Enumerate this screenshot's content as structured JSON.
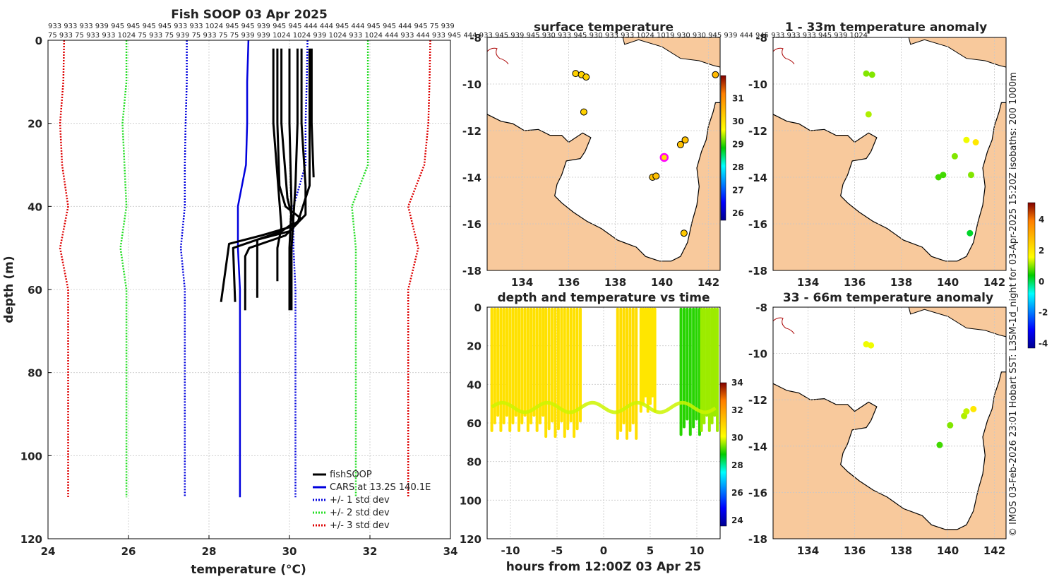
{
  "chart_data": [
    {
      "type": "line",
      "title": "Fish SOOP 03 Apr 2025",
      "xlabel": "temperature (°C)",
      "ylabel": "depth (m)",
      "xlim": [
        24,
        34
      ],
      "ylim": [
        0,
        120
      ],
      "x_ticks": [
        "24",
        "26",
        "28",
        "30",
        "32",
        "34"
      ],
      "y_ticks": [
        "0",
        "20",
        "40",
        "60",
        "80",
        "100",
        "120"
      ],
      "top_labels_row1": "933 933 933 939 945 945 945 945 933 933 1024 945 945 939 945 945 444 444 945 444 945 945 444 945 75 939",
      "top_labels_row2": "75 933 75 933 933 1024 75 933 75 939 75 933 75 75 939 939 1024 1024 939 1024 933 1024 444 933 444 933 945 444 933 945 939 945 930 933 945 930 933 933 1024 1019 930 930 945 939 444 945 933 933 933 945 939 1024",
      "legend": [
        {
          "label": "fishSOOP",
          "color": "#000000",
          "style": "solid"
        },
        {
          "label": "CARS at 13.2S 140.1E",
          "color": "#0000dd",
          "style": "solid"
        },
        {
          "label": "+/- 1 std dev",
          "color": "#0000dd",
          "style": "dotted"
        },
        {
          "label": "+/- 2 std dev",
          "color": "#22dd22",
          "style": "dotted"
        },
        {
          "label": "+/- 3 std dev",
          "color": "#dd0000",
          "style": "dotted"
        }
      ],
      "series": [
        {
          "name": "CARS mean",
          "depth": [
            0,
            10,
            20,
            30,
            40,
            50,
            60,
            110
          ],
          "temp": [
            28.98,
            28.95,
            28.95,
            28.92,
            28.72,
            28.72,
            28.77,
            28.77
          ]
        },
        {
          "name": "-1 std",
          "depth": [
            0,
            10,
            20,
            30,
            40,
            50,
            60,
            110
          ],
          "temp": [
            27.45,
            27.45,
            27.42,
            27.4,
            27.4,
            27.3,
            27.4,
            27.4
          ]
        },
        {
          "name": "+1 std",
          "depth": [
            0,
            10,
            20,
            30,
            40,
            50,
            60,
            110
          ],
          "temp": [
            30.45,
            30.43,
            30.4,
            30.4,
            30.1,
            30.1,
            30.15,
            30.15
          ]
        },
        {
          "name": "-2 std",
          "depth": [
            0,
            10,
            20,
            30,
            40,
            50,
            60,
            110
          ],
          "temp": [
            25.95,
            25.95,
            25.85,
            25.9,
            25.95,
            25.8,
            25.95,
            25.95
          ]
        },
        {
          "name": "+2 std",
          "depth": [
            0,
            10,
            20,
            30,
            40,
            50,
            60,
            110
          ],
          "temp": [
            31.95,
            31.95,
            31.95,
            31.95,
            31.55,
            31.65,
            31.65,
            31.65
          ]
        },
        {
          "name": "-3 std",
          "depth": [
            0,
            10,
            20,
            30,
            40,
            50,
            60,
            110
          ],
          "temp": [
            24.4,
            24.38,
            24.3,
            24.35,
            24.5,
            24.3,
            24.5,
            24.5
          ]
        },
        {
          "name": "+3 std",
          "depth": [
            0,
            10,
            20,
            30,
            40,
            50,
            60,
            110
          ],
          "temp": [
            33.5,
            33.48,
            33.45,
            33.35,
            32.95,
            33.2,
            32.95,
            32.95
          ]
        },
        {
          "name": "fishSOOP 1",
          "depth": [
            2,
            20,
            35,
            40,
            43,
            45,
            47,
            49,
            63
          ],
          "temp": [
            29.7,
            29.7,
            29.75,
            29.9,
            30.3,
            30.0,
            29.3,
            28.5,
            28.3
          ]
        },
        {
          "name": "fishSOOP 2",
          "depth": [
            2,
            20,
            35,
            42,
            46,
            48,
            50,
            63
          ],
          "temp": [
            30.3,
            30.3,
            30.4,
            30.4,
            30.0,
            29.2,
            28.6,
            28.65
          ]
        },
        {
          "name": "fishSOOP 3",
          "depth": [
            2,
            20,
            35,
            44,
            47,
            50,
            52,
            65
          ],
          "temp": [
            30.5,
            30.5,
            30.5,
            30.2,
            29.9,
            29.0,
            28.9,
            28.9
          ]
        },
        {
          "name": "fishSOOP 4",
          "depth": [
            2,
            20,
            38,
            44,
            46,
            48,
            62
          ],
          "temp": [
            29.8,
            29.8,
            29.95,
            30.1,
            29.8,
            29.2,
            29.2
          ]
        },
        {
          "name": "fishSOOP 5",
          "depth": [
            2,
            20,
            45,
            50,
            58
          ],
          "temp": [
            29.6,
            29.6,
            29.8,
            29.7,
            29.7
          ]
        },
        {
          "name": "fishSOOP 6",
          "depth": [
            2,
            20,
            40,
            50,
            65
          ],
          "temp": [
            30.0,
            30.0,
            30.05,
            30.0,
            30.0
          ]
        },
        {
          "name": "fishSOOP 7",
          "depth": [
            2,
            20,
            35,
            50,
            65
          ],
          "temp": [
            30.2,
            30.2,
            30.15,
            30.05,
            30.05
          ]
        },
        {
          "name": "fishSOOP 8",
          "depth": [
            2,
            20,
            33
          ],
          "temp": [
            30.55,
            30.55,
            30.6
          ]
        }
      ]
    },
    {
      "type": "scatter",
      "title": "surface temperature",
      "xlim": [
        132.5,
        142.5
      ],
      "ylim": [
        -18,
        -8
      ],
      "x_ticks": [
        "134",
        "136",
        "138",
        "140",
        "142"
      ],
      "y_ticks": [
        "-8",
        "-10",
        "-12",
        "-14",
        "-16",
        "-18"
      ],
      "colorbar": {
        "range": [
          25.7,
          32
        ],
        "ticks": [
          "26",
          "27",
          "28",
          "29",
          "30",
          "31"
        ]
      },
      "points": [
        {
          "lon": 136.3,
          "lat": -9.55,
          "temp": 30.2
        },
        {
          "lon": 136.55,
          "lat": -9.6,
          "temp": 30.2
        },
        {
          "lon": 136.75,
          "lat": -9.7,
          "temp": 30.2
        },
        {
          "lon": 136.65,
          "lat": -11.2,
          "temp": 30.2
        },
        {
          "lon": 140.1,
          "lat": -13.15,
          "temp": 30.0
        },
        {
          "lon": 139.6,
          "lat": -14.0,
          "temp": 30.4
        },
        {
          "lon": 139.75,
          "lat": -13.95,
          "temp": 30.4
        },
        {
          "lon": 140.8,
          "lat": -12.6,
          "temp": 30.4
        },
        {
          "lon": 141.0,
          "lat": -12.4,
          "temp": 30.4
        },
        {
          "lon": 140.95,
          "lat": -16.4,
          "temp": 30.3
        },
        {
          "lon": 142.3,
          "lat": -9.6,
          "temp": 30.5
        }
      ]
    },
    {
      "type": "scatter",
      "title": "depth and temperature vs time",
      "xlabel": "hours from 12:00Z 03 Apr 25",
      "xlim": [
        -12.5,
        12.5
      ],
      "ylim": [
        0,
        120
      ],
      "x_ticks": [
        "-10",
        "-5",
        "0",
        "5",
        "10"
      ],
      "y_ticks": [
        "0",
        "20",
        "40",
        "60",
        "80",
        "100",
        "120"
      ],
      "colorbar": {
        "range": [
          23.6,
          34
        ],
        "ticks": [
          "24",
          "26",
          "28",
          "30",
          "32",
          "34"
        ]
      },
      "segments": [
        {
          "t0": -12.0,
          "t1": -6.5,
          "max_depth": 64,
          "temp": 30.7
        },
        {
          "t0": -6.2,
          "t1": -2.5,
          "max_depth": 67,
          "temp": 30.7
        },
        {
          "t0": 1.5,
          "t1": 3.5,
          "max_depth": 68,
          "temp": 30.8
        },
        {
          "t0": 4.0,
          "t1": 5.5,
          "max_depth": 54,
          "temp": 30.6
        },
        {
          "t0": 8.3,
          "t1": 10.3,
          "max_depth": 66,
          "temp": 29.0
        },
        {
          "t0": 10.5,
          "t1": 12.2,
          "max_depth": 64,
          "temp": 29.6
        }
      ]
    },
    {
      "type": "scatter",
      "title": "1 - 33m temperature anomaly",
      "xlim": [
        132.5,
        142.5
      ],
      "ylim": [
        -18,
        -8
      ],
      "x_ticks": [
        "134",
        "136",
        "138",
        "140",
        "142"
      ],
      "y_ticks": [
        "-8",
        "-10",
        "-12",
        "-14",
        "-16",
        "-18"
      ],
      "colorbar": {
        "range": [
          -4.3,
          5.1
        ],
        "ticks": [
          "4",
          "2",
          "0",
          "-2",
          "-4"
        ]
      },
      "points": [
        {
          "lon": 136.5,
          "lat": -9.55,
          "anom": 1.0
        },
        {
          "lon": 136.75,
          "lat": -9.6,
          "anom": 1.0
        },
        {
          "lon": 136.6,
          "lat": -11.3,
          "anom": 1.2
        },
        {
          "lon": 139.6,
          "lat": -14.0,
          "anom": 0.7
        },
        {
          "lon": 139.8,
          "lat": -13.9,
          "anom": 0.7
        },
        {
          "lon": 140.3,
          "lat": -13.1,
          "anom": 1.0
        },
        {
          "lon": 140.8,
          "lat": -12.4,
          "anom": 1.5
        },
        {
          "lon": 141.2,
          "lat": -12.5,
          "anom": 2.0
        },
        {
          "lon": 141.0,
          "lat": -13.9,
          "anom": 1.0
        },
        {
          "lon": 140.95,
          "lat": -16.4,
          "anom": 0.2
        }
      ]
    },
    {
      "type": "scatter",
      "title": "33 - 66m temperature anomaly",
      "xlim": [
        132.5,
        142.5
      ],
      "ylim": [
        -18,
        -8
      ],
      "x_ticks": [
        "134",
        "136",
        "138",
        "140",
        "142"
      ],
      "y_ticks": [
        "-8",
        "-10",
        "-12",
        "-14",
        "-16",
        "-18"
      ],
      "points": [
        {
          "lon": 136.5,
          "lat": -9.6,
          "anom": 1.5
        },
        {
          "lon": 136.7,
          "lat": -9.65,
          "anom": 1.5
        },
        {
          "lon": 139.65,
          "lat": -13.95,
          "anom": 0.7
        },
        {
          "lon": 140.1,
          "lat": -13.1,
          "anom": 1.0
        },
        {
          "lon": 140.7,
          "lat": -12.7,
          "anom": 1.2
        },
        {
          "lon": 140.8,
          "lat": -12.5,
          "anom": 1.3
        },
        {
          "lon": 141.1,
          "lat": -12.4,
          "anom": 2.0
        }
      ]
    }
  ],
  "credit": "© IMOS 03-Feb-2026 23:01 Hobart SST: L3SM-1d_night for 03-Apr-2025 15:20Z isobaths: 200  1000m",
  "colors": {
    "land": "#f8c99c",
    "fish": "#000000",
    "cars": "#0000dd",
    "std1": "#0000dd",
    "std2": "#22dd22",
    "std3": "#dd0000",
    "magenta": "#ff00ff",
    "isobath": "#aa0000"
  }
}
